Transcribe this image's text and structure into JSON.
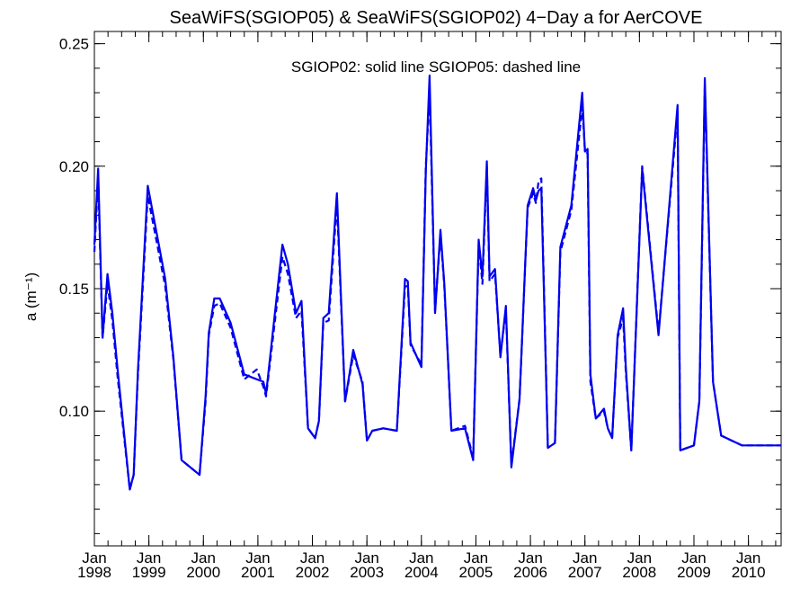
{
  "chart_data": {
    "type": "line",
    "title": "SeaWiFS(SGIOP05) & SeaWiFS(SGIOP02) 4−Day a for AerCOVE",
    "annotation": "SGIOP02: solid line   SGIOP05: dashed line",
    "ylabel": "a (m⁻¹)",
    "xlabel": "",
    "xlim": [
      1998.0,
      2010.6
    ],
    "ylim": [
      0.045,
      0.255
    ],
    "y_ticks": [
      {
        "value": 0.1,
        "label": "0.10"
      },
      {
        "value": 0.15,
        "label": "0.15"
      },
      {
        "value": 0.2,
        "label": "0.20"
      },
      {
        "value": 0.25,
        "label": "0.25"
      }
    ],
    "x_ticks": [
      {
        "value": 1998.0,
        "month": "Jan",
        "year": "1998"
      },
      {
        "value": 1999.0,
        "month": "Jan",
        "year": "1999"
      },
      {
        "value": 2000.0,
        "month": "Jan",
        "year": "2000"
      },
      {
        "value": 2001.0,
        "month": "Jan",
        "year": "2001"
      },
      {
        "value": 2002.0,
        "month": "Jan",
        "year": "2002"
      },
      {
        "value": 2003.0,
        "month": "Jan",
        "year": "2003"
      },
      {
        "value": 2004.0,
        "month": "Jan",
        "year": "2004"
      },
      {
        "value": 2005.0,
        "month": "Jan",
        "year": "2005"
      },
      {
        "value": 2006.0,
        "month": "Jan",
        "year": "2006"
      },
      {
        "value": 2007.0,
        "month": "Jan",
        "year": "2007"
      },
      {
        "value": 2008.0,
        "month": "Jan",
        "year": "2008"
      },
      {
        "value": 2009.0,
        "month": "Jan",
        "year": "2009"
      },
      {
        "value": 2010.0,
        "month": "Jan",
        "year": "2010"
      }
    ],
    "grid": false,
    "series": [
      {
        "name": "SGIOP02",
        "style": "solid",
        "color": "#0000ee",
        "x": [
          1998.0,
          1998.07,
          1998.15,
          1998.24,
          1998.33,
          1998.43,
          1998.65,
          1998.72,
          1998.8,
          1998.98,
          1999.3,
          1999.45,
          1999.6,
          1999.93,
          2000.04,
          2000.1,
          2000.2,
          2000.3,
          2000.5,
          2000.75,
          2000.98,
          2001.1,
          2001.15,
          2001.45,
          2001.55,
          2001.7,
          2001.8,
          2001.92,
          2002.05,
          2002.12,
          2002.2,
          2002.3,
          2002.45,
          2002.6,
          2002.75,
          2002.92,
          2003.0,
          2003.1,
          2003.3,
          2003.55,
          2003.7,
          2003.75,
          2003.8,
          2004.0,
          2004.08,
          2004.15,
          2004.25,
          2004.35,
          2004.42,
          2004.55,
          2004.8,
          2004.95,
          2005.05,
          2005.12,
          2005.2,
          2005.25,
          2005.35,
          2005.45,
          2005.55,
          2005.65,
          2005.8,
          2005.95,
          2006.05,
          2006.1,
          2006.15,
          2006.2,
          2006.32,
          2006.45,
          2006.55,
          2006.75,
          2006.95,
          2007.0,
          2007.05,
          2007.1,
          2007.2,
          2007.35,
          2007.42,
          2007.5,
          2007.6,
          2007.7,
          2007.75,
          2007.85,
          2008.05,
          2008.35,
          2008.7,
          2008.75,
          2009.0,
          2009.1,
          2009.2,
          2009.35,
          2009.5,
          2009.88,
          2010.05,
          2010.1,
          2010.2,
          2010.3,
          2010.45,
          2010.6
        ],
        "y": [
          0.168,
          0.199,
          0.13,
          0.156,
          0.14,
          0.116,
          0.068,
          0.074,
          0.117,
          0.192,
          0.154,
          0.122,
          0.08,
          0.074,
          0.106,
          0.132,
          0.146,
          0.146,
          0.136,
          0.115,
          0.113,
          0.112,
          0.107,
          0.168,
          0.16,
          0.14,
          0.145,
          0.093,
          0.089,
          0.096,
          0.138,
          0.14,
          0.189,
          0.104,
          0.125,
          0.111,
          0.088,
          0.092,
          0.093,
          0.092,
          0.154,
          0.153,
          0.128,
          0.118,
          0.198,
          0.237,
          0.14,
          0.174,
          0.152,
          0.092,
          0.093,
          0.08,
          0.17,
          0.155,
          0.202,
          0.155,
          0.158,
          0.122,
          0.143,
          0.077,
          0.105,
          0.184,
          0.191,
          0.186,
          0.19,
          0.191,
          0.085,
          0.087,
          0.167,
          0.184,
          0.23,
          0.206,
          0.207,
          0.115,
          0.097,
          0.101,
          0.093,
          0.089,
          0.131,
          0.142,
          0.118,
          0.084,
          0.199,
          0.131,
          0.225,
          0.084,
          0.086,
          0.104,
          0.236,
          0.112,
          0.09,
          0.086,
          0.086,
          0.086,
          0.086,
          0.086,
          0.086,
          0.086
        ]
      },
      {
        "name": "SGIOP05",
        "style": "dashed",
        "color": "#0000ee",
        "x": [
          1998.0,
          1998.07,
          1998.15,
          1998.24,
          1998.33,
          1998.43,
          1998.65,
          1998.72,
          1998.8,
          1998.98,
          1999.3,
          1999.45,
          1999.6,
          1999.93,
          2000.04,
          2000.1,
          2000.2,
          2000.3,
          2000.5,
          2000.75,
          2000.98,
          2001.1,
          2001.15,
          2001.45,
          2001.55,
          2001.7,
          2001.8,
          2001.92,
          2002.05,
          2002.12,
          2002.2,
          2002.3,
          2002.45,
          2002.6,
          2002.75,
          2002.92,
          2003.0,
          2003.1,
          2003.3,
          2003.55,
          2003.7,
          2003.75,
          2003.8,
          2004.0,
          2004.08,
          2004.15,
          2004.25,
          2004.35,
          2004.42,
          2004.55,
          2004.8,
          2004.95,
          2005.05,
          2005.12,
          2005.2,
          2005.25,
          2005.35,
          2005.45,
          2005.55,
          2005.65,
          2005.8,
          2005.95,
          2006.05,
          2006.1,
          2006.15,
          2006.2,
          2006.32,
          2006.45,
          2006.55,
          2006.75,
          2006.95,
          2007.0,
          2007.05,
          2007.1,
          2007.2,
          2007.35,
          2007.42,
          2007.5,
          2007.6,
          2007.7,
          2007.75,
          2007.85,
          2008.05,
          2008.35,
          2008.7,
          2008.75,
          2009.0,
          2009.1,
          2009.2,
          2009.35,
          2009.5,
          2009.88,
          2010.05,
          2010.1,
          2010.2,
          2010.3,
          2010.45,
          2010.6
        ],
        "y": [
          0.165,
          0.195,
          0.13,
          0.152,
          0.137,
          0.113,
          0.068,
          0.074,
          0.115,
          0.188,
          0.151,
          0.121,
          0.08,
          0.074,
          0.104,
          0.131,
          0.143,
          0.144,
          0.134,
          0.113,
          0.117,
          0.11,
          0.106,
          0.163,
          0.156,
          0.138,
          0.141,
          0.093,
          0.089,
          0.096,
          0.136,
          0.137,
          0.185,
          0.104,
          0.123,
          0.112,
          0.088,
          0.092,
          0.093,
          0.092,
          0.151,
          0.151,
          0.127,
          0.119,
          0.2,
          0.23,
          0.141,
          0.172,
          0.151,
          0.092,
          0.094,
          0.081,
          0.168,
          0.152,
          0.2,
          0.153,
          0.156,
          0.123,
          0.141,
          0.078,
          0.105,
          0.183,
          0.189,
          0.185,
          0.194,
          0.195,
          0.085,
          0.087,
          0.165,
          0.182,
          0.224,
          0.207,
          0.205,
          0.112,
          0.097,
          0.1,
          0.093,
          0.089,
          0.13,
          0.138,
          0.116,
          0.084,
          0.2,
          0.132,
          0.222,
          0.084,
          0.086,
          0.104,
          0.233,
          0.112,
          0.09,
          0.086,
          0.086,
          0.086,
          0.086,
          0.086,
          0.086,
          0.086
        ]
      }
    ]
  }
}
